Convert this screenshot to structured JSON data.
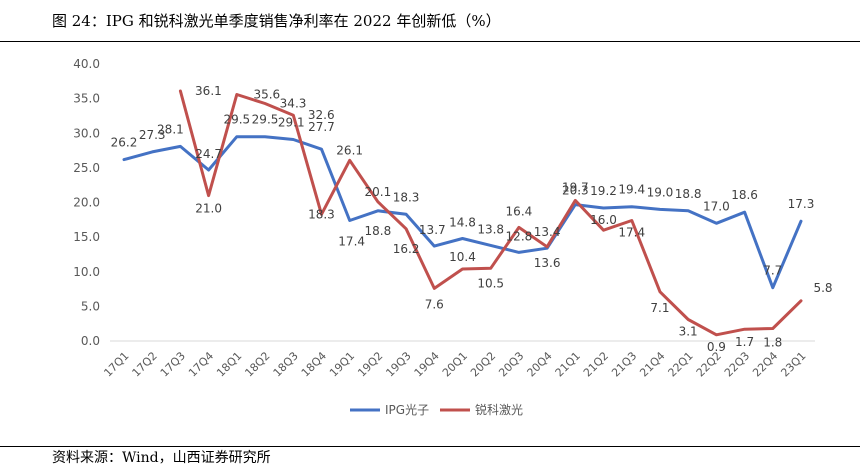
{
  "page": {
    "title": "图 24：IPG 和锐科激光单季度销售净利率在 2022 年创新低（%）",
    "source": "资料来源：Wind，山西证券研究所"
  },
  "chart_data": {
    "type": "line",
    "title": "图 24：IPG 和锐科激光单季度销售净利率在 2022 年创新低（%）",
    "xlabel": "",
    "ylabel": "",
    "ylim": [
      0,
      40
    ],
    "yticks": [
      "0.0",
      "5.0",
      "10.0",
      "15.0",
      "20.0",
      "25.0",
      "30.0",
      "35.0",
      "40.0"
    ],
    "categories": [
      "17Q1",
      "17Q2",
      "17Q3",
      "17Q4",
      "18Q1",
      "18Q2",
      "18Q3",
      "18Q4",
      "19Q1",
      "19Q2",
      "19Q3",
      "19Q4",
      "20Q1",
      "20Q2",
      "20Q3",
      "20Q4",
      "21Q1",
      "21Q2",
      "21Q3",
      "21Q4",
      "22Q1",
      "22Q2",
      "22Q3",
      "22Q4",
      "23Q1"
    ],
    "grid": false,
    "legend_position": "bottom",
    "series": [
      {
        "name": "IPG光子",
        "color": "#4472C4",
        "values": [
          26.2,
          27.3,
          28.1,
          24.7,
          29.5,
          29.5,
          29.1,
          27.7,
          17.4,
          18.8,
          18.3,
          13.7,
          14.8,
          13.8,
          12.8,
          13.4,
          19.7,
          19.2,
          19.4,
          19.0,
          18.8,
          17.0,
          18.6,
          7.7,
          17.3
        ],
        "labels": [
          "26.2",
          "27.3",
          "28.1",
          "24.7",
          "29.5",
          "29.5",
          "29.1",
          "27.7",
          "17.4",
          "18.8",
          "18.3",
          "13.7",
          "14.8",
          "13.8",
          "12.8",
          "13.4",
          "19.7",
          "19.2",
          "19.4",
          "19.0",
          "18.8",
          "17.0",
          "18.6",
          "7.7",
          "17.3"
        ]
      },
      {
        "name": "锐科激光",
        "color": "#C0504D",
        "values": [
          null,
          null,
          36.1,
          21.0,
          35.6,
          34.3,
          32.6,
          18.3,
          26.1,
          20.1,
          16.2,
          7.6,
          10.4,
          10.5,
          16.4,
          13.6,
          20.3,
          16.0,
          17.4,
          7.1,
          3.1,
          0.9,
          1.7,
          1.8,
          5.8
        ],
        "labels": [
          null,
          null,
          "36.1",
          "21.0",
          "35.6",
          "34.3",
          "32.6",
          "18.3",
          "26.1",
          "20.1",
          "16.2",
          "7.6",
          "10.4",
          "10.5",
          "16.4",
          "13.6",
          "20.3",
          "16.0",
          "17.4",
          "7.1",
          "3.1",
          "0.9",
          "1.7",
          "1.8",
          "5.8"
        ]
      }
    ]
  }
}
